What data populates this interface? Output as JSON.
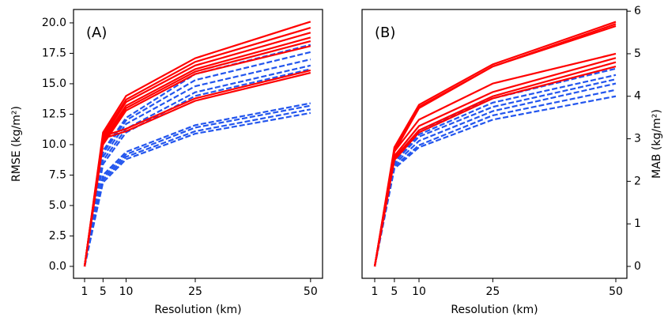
{
  "chart_data": [
    {
      "type": "line",
      "annotation": "(A)",
      "xlabel": "Resolution (km)",
      "ylabel": "RMSE (kg/m²)",
      "y_axis_side": "left",
      "x": [
        1,
        5,
        10,
        25,
        50
      ],
      "xlim": [
        -1.4,
        52.6
      ],
      "xticks": [
        1,
        5,
        10,
        25,
        50
      ],
      "ylim": [
        -0.98,
        21.1
      ],
      "yticks": [
        {
          "value": 0,
          "label": "0.0"
        },
        {
          "value": 2.5,
          "label": "2.5"
        },
        {
          "value": 5,
          "label": "5.0"
        },
        {
          "value": 7.5,
          "label": "7.5"
        },
        {
          "value": 10,
          "label": "10.0"
        },
        {
          "value": 12.5,
          "label": "12.5"
        },
        {
          "value": 15,
          "label": "15.0"
        },
        {
          "value": 17.5,
          "label": "17.5"
        },
        {
          "value": 20,
          "label": "20.0"
        }
      ],
      "series": [
        {
          "color": "#2255ee",
          "linestyle": "dashed",
          "values": [
            0,
            9.5,
            12.2,
            15.8,
            18.2
          ]
        },
        {
          "color": "#2255ee",
          "linestyle": "dashed",
          "values": [
            0,
            9.3,
            12.0,
            15.3,
            17.6
          ]
        },
        {
          "color": "#2255ee",
          "linestyle": "dashed",
          "values": [
            0,
            9.0,
            11.7,
            14.8,
            17.0
          ]
        },
        {
          "color": "#2255ee",
          "linestyle": "dashed",
          "values": [
            0,
            8.7,
            11.3,
            14.3,
            16.5
          ]
        },
        {
          "color": "#2255ee",
          "linestyle": "dashed",
          "values": [
            0,
            8.4,
            11.0,
            14.0,
            16.2
          ]
        },
        {
          "color": "#2255ee",
          "linestyle": "dashed",
          "values": [
            0,
            7.5,
            9.4,
            11.6,
            13.4
          ]
        },
        {
          "color": "#2255ee",
          "linestyle": "dashed",
          "values": [
            0,
            7.3,
            9.2,
            11.4,
            13.2
          ]
        },
        {
          "color": "#2255ee",
          "linestyle": "dashed",
          "values": [
            0,
            7.1,
            9.0,
            11.1,
            12.9
          ]
        },
        {
          "color": "#2255ee",
          "linestyle": "dashed",
          "values": [
            0,
            6.9,
            8.8,
            10.9,
            12.6
          ]
        },
        {
          "color": "#ff0000",
          "linestyle": "solid",
          "values": [
            0,
            11.0,
            14.0,
            17.1,
            20.1
          ]
        },
        {
          "color": "#ff0000",
          "linestyle": "solid",
          "values": [
            0,
            10.8,
            13.7,
            16.8,
            19.6
          ]
        },
        {
          "color": "#ff0000",
          "linestyle": "solid",
          "values": [
            0,
            10.6,
            13.5,
            16.5,
            19.2
          ]
        },
        {
          "color": "#ff0000",
          "linestyle": "solid",
          "values": [
            0,
            10.4,
            13.2,
            16.2,
            18.8
          ]
        },
        {
          "color": "#ff0000",
          "linestyle": "solid",
          "values": [
            0,
            10.2,
            13.0,
            16.0,
            18.5
          ]
        },
        {
          "color": "#ff0000",
          "linestyle": "solid",
          "values": [
            0,
            10.0,
            12.8,
            15.8,
            18.1
          ]
        },
        {
          "color": "#ff0000",
          "linestyle": "solid",
          "values": [
            0,
            10.7,
            11.3,
            13.8,
            16.1
          ]
        },
        {
          "color": "#ff0000",
          "linestyle": "solid",
          "values": [
            0,
            10.5,
            11.1,
            13.6,
            15.9
          ]
        }
      ]
    },
    {
      "type": "line",
      "annotation": "(B)",
      "xlabel": "Resolution (km)",
      "ylabel": "MAB (kg/m²)",
      "y_axis_side": "right",
      "x": [
        1,
        5,
        10,
        25,
        50
      ],
      "xlim": [
        -1.57,
        52.25
      ],
      "xticks": [
        1,
        5,
        10,
        25,
        50
      ],
      "ylim": [
        -0.28,
        6.04
      ],
      "yticks": [
        0,
        1,
        2,
        3,
        4,
        5,
        6
      ],
      "series": [
        {
          "color": "#2255ee",
          "linestyle": "dashed",
          "values": [
            0,
            2.55,
            3.2,
            3.95,
            4.65
          ]
        },
        {
          "color": "#2255ee",
          "linestyle": "dashed",
          "values": [
            0,
            2.5,
            3.1,
            3.85,
            4.5
          ]
        },
        {
          "color": "#2255ee",
          "linestyle": "dashed",
          "values": [
            0,
            2.45,
            3.05,
            3.75,
            4.4
          ]
        },
        {
          "color": "#2255ee",
          "linestyle": "dashed",
          "values": [
            0,
            2.4,
            2.95,
            3.65,
            4.3
          ]
        },
        {
          "color": "#2255ee",
          "linestyle": "dashed",
          "values": [
            0,
            2.35,
            2.85,
            3.55,
            4.15
          ]
        },
        {
          "color": "#2255ee",
          "linestyle": "dashed",
          "values": [
            0,
            2.3,
            2.8,
            3.45,
            4.0
          ]
        },
        {
          "color": "#ff0000",
          "linestyle": "solid",
          "values": [
            0,
            2.8,
            3.8,
            4.75,
            5.75
          ]
        },
        {
          "color": "#ff0000",
          "linestyle": "solid",
          "values": [
            0,
            2.75,
            3.75,
            4.7,
            5.7
          ]
        },
        {
          "color": "#ff0000",
          "linestyle": "solid",
          "values": [
            0,
            2.7,
            3.72,
            4.7,
            5.65
          ]
        },
        {
          "color": "#ff0000",
          "linestyle": "solid",
          "values": [
            0,
            2.7,
            3.45,
            4.3,
            5.0
          ]
        },
        {
          "color": "#ff0000",
          "linestyle": "solid",
          "values": [
            0,
            2.6,
            3.3,
            4.1,
            4.9
          ]
        },
        {
          "color": "#ff0000",
          "linestyle": "solid",
          "values": [
            0,
            2.55,
            3.2,
            4.0,
            4.8
          ]
        },
        {
          "color": "#ff0000",
          "linestyle": "solid",
          "values": [
            0,
            2.5,
            3.15,
            3.95,
            4.7
          ]
        }
      ]
    }
  ]
}
